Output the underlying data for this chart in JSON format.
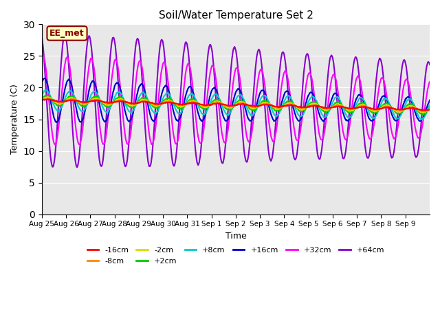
{
  "title": "Soil/Water Temperature Set 2",
  "xlabel": "Time",
  "ylabel": "Temperature (C)",
  "ylim": [
    0,
    30
  ],
  "yticks": [
    0,
    5,
    10,
    15,
    20,
    25,
    30
  ],
  "annotation": "EE_met",
  "annotation_color": "#8B0000",
  "annotation_bg": "#FFFFC0",
  "bg_color": "#E8E8E8",
  "days": [
    "Aug 25",
    "Aug 26",
    "Aug 27",
    "Aug 28",
    "Aug 29",
    "Aug 30",
    "Aug 31",
    "Sep 1",
    "Sep 2",
    "Sep 3",
    "Sep 4",
    "Sep 5",
    "Sep 6",
    "Sep 7",
    "Sep 8",
    "Sep 9"
  ],
  "colors": {
    "-16cm": "#FF0000",
    "-8cm": "#FF8800",
    "-2cm": "#DDDD00",
    "+2cm": "#00CC00",
    "+8cm": "#00CCCC",
    "+16cm": "#0000CC",
    "+32cm": "#FF00FF",
    "+64cm": "#8800CC"
  },
  "legend_order": [
    "-16cm",
    "-8cm",
    "-2cm",
    "+2cm",
    "+8cm",
    "+16cm",
    "+32cm",
    "+64cm"
  ]
}
